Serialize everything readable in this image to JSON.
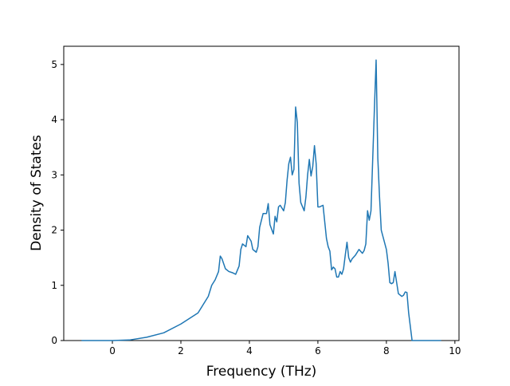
{
  "chart_data": {
    "type": "line",
    "xlabel": "Frequency (THz)",
    "ylabel": "Density of States",
    "xlim": [
      -1.42,
      10.12
    ],
    "ylim": [
      0,
      5.33
    ],
    "xticks": [
      0,
      2,
      4,
      6,
      8,
      10
    ],
    "yticks": [
      0,
      1,
      2,
      3,
      4,
      5
    ],
    "series": [
      {
        "color": "#1f77b4",
        "x": [
          -0.9,
          0,
          0.5,
          1,
          1.5,
          2,
          2.5,
          2.8,
          2.9,
          3.0,
          3.1,
          3.15,
          3.2,
          3.3,
          3.4,
          3.5,
          3.6,
          3.7,
          3.75,
          3.8,
          3.9,
          3.95,
          4.05,
          4.1,
          4.2,
          4.25,
          4.3,
          4.4,
          4.5,
          4.55,
          4.6,
          4.7,
          4.75,
          4.8,
          4.85,
          4.9,
          5.0,
          5.05,
          5.1,
          5.15,
          5.2,
          5.25,
          5.3,
          5.35,
          5.4,
          5.45,
          5.5,
          5.6,
          5.65,
          5.7,
          5.75,
          5.8,
          5.85,
          5.9,
          5.95,
          6.0,
          6.05,
          6.15,
          6.2,
          6.25,
          6.3,
          6.35,
          6.4,
          6.45,
          6.5,
          6.55,
          6.6,
          6.65,
          6.7,
          6.75,
          6.8,
          6.85,
          6.9,
          6.95,
          7.0,
          7.1,
          7.2,
          7.3,
          7.35,
          7.4,
          7.45,
          7.5,
          7.55,
          7.65,
          7.7,
          7.75,
          7.8,
          7.85,
          8.0,
          8.05,
          8.1,
          8.15,
          8.2,
          8.25,
          8.3,
          8.35,
          8.45,
          8.5,
          8.55,
          8.6,
          8.65,
          8.75,
          9.6
        ],
        "values": [
          0,
          0,
          0.01,
          0.06,
          0.14,
          0.3,
          0.5,
          0.8,
          1.0,
          1.1,
          1.25,
          1.53,
          1.48,
          1.3,
          1.25,
          1.23,
          1.2,
          1.35,
          1.65,
          1.75,
          1.7,
          1.9,
          1.8,
          1.65,
          1.6,
          1.7,
          2.05,
          2.3,
          2.3,
          2.48,
          2.1,
          1.93,
          2.25,
          2.15,
          2.42,
          2.45,
          2.35,
          2.5,
          2.9,
          3.2,
          3.32,
          3.0,
          3.1,
          4.23,
          3.95,
          2.85,
          2.5,
          2.35,
          2.6,
          3.0,
          3.28,
          2.98,
          3.15,
          3.53,
          3.2,
          2.42,
          2.42,
          2.45,
          2.15,
          1.85,
          1.7,
          1.62,
          1.28,
          1.33,
          1.3,
          1.15,
          1.15,
          1.25,
          1.2,
          1.3,
          1.55,
          1.78,
          1.5,
          1.42,
          1.48,
          1.55,
          1.65,
          1.58,
          1.63,
          1.75,
          2.35,
          2.18,
          2.35,
          4.2,
          5.08,
          3.3,
          2.6,
          2.0,
          1.65,
          1.4,
          1.05,
          1.03,
          1.05,
          1.25,
          1.05,
          0.85,
          0.8,
          0.82,
          0.88,
          0.87,
          0.5,
          0,
          0
        ]
      }
    ]
  }
}
